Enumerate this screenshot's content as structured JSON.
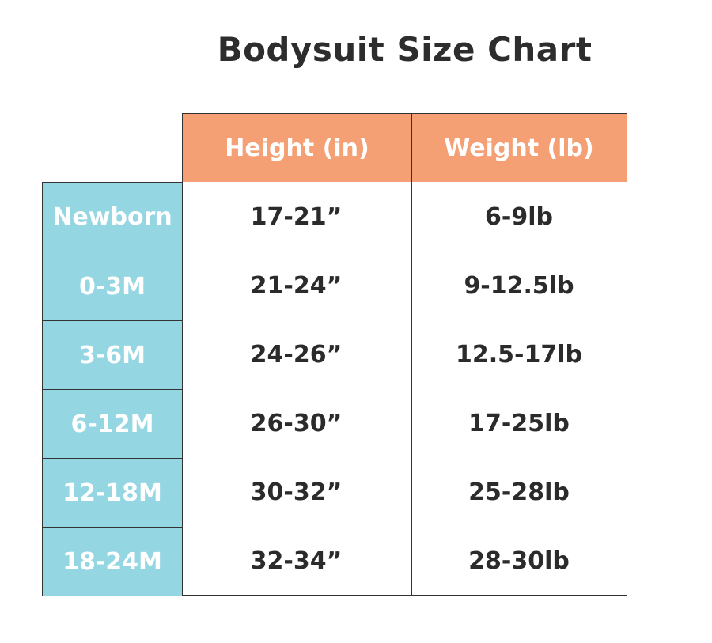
{
  "chart_data": {
    "type": "table",
    "title": "Bodysuit Size Chart",
    "columns": [
      "Height (in)",
      "Weight (lb)"
    ],
    "rows": [
      {
        "size": "Newborn",
        "height": "17-21”",
        "weight": "6-9lb"
      },
      {
        "size": "0-3M",
        "height": "21-24”",
        "weight": "9-12.5lb"
      },
      {
        "size": "3-6M",
        "height": "24-26”",
        "weight": "12.5-17lb"
      },
      {
        "size": "6-12M",
        "height": "26-30”",
        "weight": "17-25lb"
      },
      {
        "size": "12-18M",
        "height": "30-32”",
        "weight": "25-28lb"
      },
      {
        "size": "18-24M",
        "height": "32-34”",
        "weight": "28-30lb"
      }
    ],
    "colors": {
      "header": "#F49F74",
      "row_label": "#95D6E3",
      "text": "#2b2b2b"
    }
  }
}
